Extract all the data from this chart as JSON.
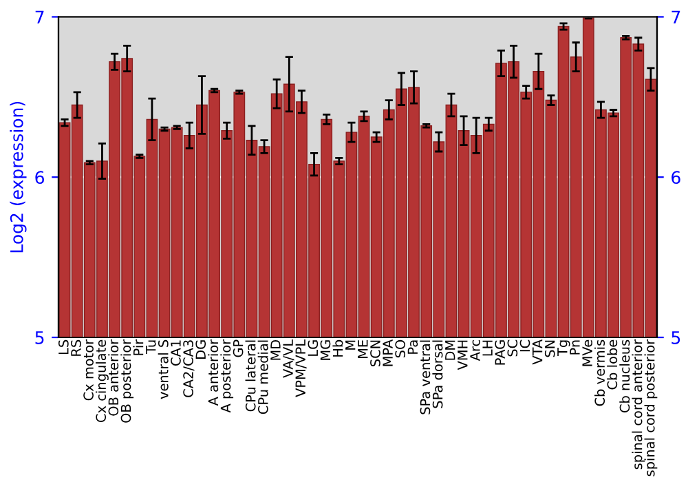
{
  "chart_data": {
    "type": "bar",
    "ylabel": "Log2 (expression)",
    "categories": [
      "LS",
      "RS",
      "Cx motor",
      "Cx cingulate",
      "OB anterior",
      "OB posterior",
      "Pir",
      "Tu",
      "ventral S",
      "CA1",
      "CA2/CA3",
      "DG",
      "A anterior",
      "A posterior",
      "GP",
      "CPu lateral",
      "CPu medial",
      "MD",
      "VA/VL",
      "VPM/VPL",
      "LG",
      "MG",
      "Hb",
      "M",
      "ME",
      "SCN",
      "MPA",
      "SO",
      "Pa",
      "SPa ventral",
      "SPa dorsal",
      "DM",
      "VMH",
      "Arc",
      "LH",
      "PAG",
      "SC",
      "IC",
      "VTA",
      "SN",
      "Tg",
      "Pn",
      "MVe",
      "Cb vermis",
      "Cb lobe",
      "Cb nucleus",
      "spinal cord anterior",
      "spinal cord posterior"
    ],
    "values": [
      6.34,
      6.45,
      6.09,
      6.1,
      6.72,
      6.74,
      6.13,
      6.36,
      6.3,
      6.31,
      6.26,
      6.45,
      6.54,
      6.29,
      6.53,
      6.23,
      6.19,
      6.52,
      6.58,
      6.47,
      6.08,
      6.36,
      6.1,
      6.28,
      6.38,
      6.25,
      6.42,
      6.55,
      6.56,
      6.32,
      6.22,
      6.45,
      6.29,
      6.26,
      6.33,
      6.71,
      6.72,
      6.53,
      6.66,
      6.48,
      6.94,
      6.75,
      7.0,
      6.42,
      6.4,
      6.87,
      6.83,
      6.61
    ],
    "errors": [
      0.02,
      0.08,
      0.01,
      0.11,
      0.05,
      0.08,
      0.01,
      0.13,
      0.01,
      0.01,
      0.08,
      0.18,
      0.01,
      0.05,
      0.01,
      0.09,
      0.04,
      0.09,
      0.17,
      0.07,
      0.07,
      0.03,
      0.02,
      0.06,
      0.03,
      0.03,
      0.06,
      0.1,
      0.1,
      0.01,
      0.06,
      0.07,
      0.09,
      0.11,
      0.04,
      0.08,
      0.1,
      0.04,
      0.11,
      0.03,
      0.02,
      0.09,
      0.01,
      0.05,
      0.02,
      0.01,
      0.04,
      0.07
    ],
    "color": "#b53434",
    "ylim": [
      5,
      7
    ],
    "yticks": [
      5,
      6,
      7
    ],
    "y2lim": [
      5,
      7
    ],
    "y2ticks": [
      5,
      6,
      7
    ],
    "grid": "y"
  }
}
